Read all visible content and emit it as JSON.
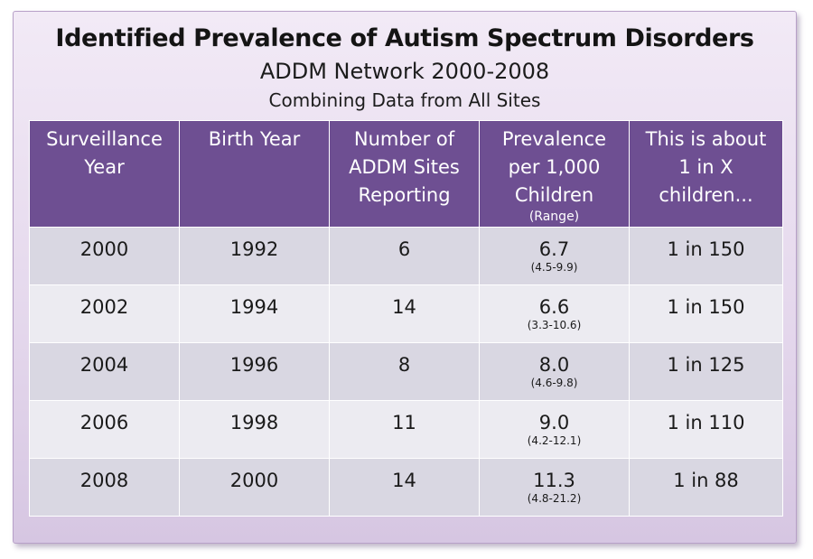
{
  "title": "Identified Prevalence of Autism Spectrum Disorders",
  "subtitle": "ADDM Network 2000-2008",
  "subtitle2": "Combining Data from All Sites",
  "colors": {
    "header_bg": "#6e4f92",
    "row_odd": "#d9d7e2",
    "row_even": "#ecebf1",
    "panel_bg": "#e4d7ec"
  },
  "chart_data": {
    "type": "table",
    "title": "Identified Prevalence of Autism Spectrum Disorders",
    "subtitle": "ADDM Network 2000-2008",
    "columns": [
      {
        "lines": [
          "Surveillance",
          "Year"
        ],
        "note": ""
      },
      {
        "lines": [
          "Birth Year"
        ],
        "note": ""
      },
      {
        "lines": [
          "Number of",
          "ADDM Sites",
          "Reporting"
        ],
        "note": ""
      },
      {
        "lines": [
          "Prevalence",
          "per 1,000",
          "Children"
        ],
        "note": "(Range)"
      },
      {
        "lines": [
          "This is about",
          "1 in X",
          "children..."
        ],
        "note": ""
      }
    ],
    "rows": [
      {
        "surveillance_year": "2000",
        "birth_year": "1992",
        "sites": "6",
        "prevalence": "6.7",
        "range": "(4.5-9.9)",
        "one_in_x": "1 in 150"
      },
      {
        "surveillance_year": "2002",
        "birth_year": "1994",
        "sites": "14",
        "prevalence": "6.6",
        "range": "(3.3-10.6)",
        "one_in_x": "1 in 150"
      },
      {
        "surveillance_year": "2004",
        "birth_year": "1996",
        "sites": "8",
        "prevalence": "8.0",
        "range": "(4.6-9.8)",
        "one_in_x": "1 in 125"
      },
      {
        "surveillance_year": "2006",
        "birth_year": "1998",
        "sites": "11",
        "prevalence": "9.0",
        "range": "(4.2-12.1)",
        "one_in_x": "1 in 110"
      },
      {
        "surveillance_year": "2008",
        "birth_year": "2000",
        "sites": "14",
        "prevalence": "11.3",
        "range": "(4.8-21.2)",
        "one_in_x": "1 in 88"
      }
    ]
  }
}
